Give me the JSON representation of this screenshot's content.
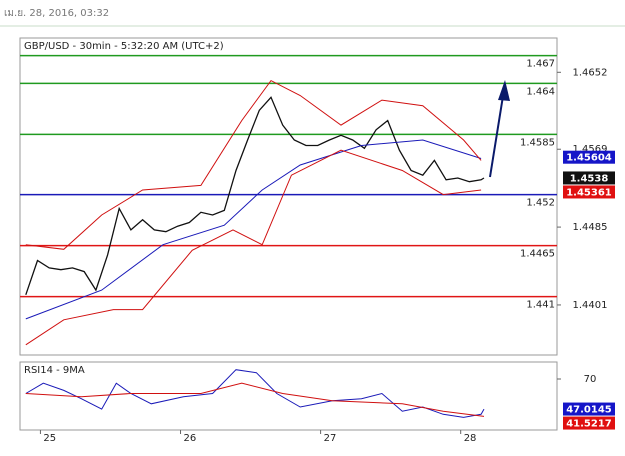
{
  "header": {
    "timestamp": "เม.ย. 28, 2016, 03:32"
  },
  "chart_data": [
    {
      "type": "line",
      "title": "GBP/USD - 30min - 5:32:20 AM (UTC+2)",
      "xlim": [
        -2,
        182
      ],
      "ylim": [
        1.4347,
        1.4689
      ],
      "yticks": [
        1.4401,
        1.4485,
        1.4569,
        1.4652
      ],
      "levels": [
        {
          "value": 1.467,
          "color": "#1f9a1f"
        },
        {
          "value": 1.464,
          "color": "#1f9a1f"
        },
        {
          "value": 1.4585,
          "color": "#1f9a1f"
        },
        {
          "value": 1.452,
          "color": "#1a1ab8"
        },
        {
          "value": 1.4465,
          "color": "#e01515"
        },
        {
          "value": 1.441,
          "color": "#e01515"
        }
      ],
      "series": [
        {
          "color": "#111111",
          "x": [
            0,
            4,
            8,
            12,
            16,
            20,
            24,
            28,
            32,
            36,
            40,
            44,
            48,
            52,
            56,
            60,
            64,
            68,
            72,
            76,
            80,
            84,
            88,
            92,
            96,
            100,
            104,
            108,
            112,
            116,
            120,
            124,
            128,
            132,
            136,
            140,
            144,
            148,
            152,
            156,
            157
          ],
          "values": [
            1.4412,
            1.4449,
            1.4441,
            1.4439,
            1.4441,
            1.4437,
            1.4417,
            1.4455,
            1.4505,
            1.4482,
            1.4493,
            1.4482,
            1.448,
            1.4486,
            1.449,
            1.4501,
            1.4498,
            1.4503,
            1.4546,
            1.4579,
            1.4611,
            1.4625,
            1.4595,
            1.4579,
            1.4573,
            1.4573,
            1.4579,
            1.4584,
            1.4579,
            1.457,
            1.459,
            1.46,
            1.4568,
            1.4546,
            1.4541,
            1.4557,
            1.4536,
            1.4538,
            1.4534,
            1.4536,
            1.4538
          ]
        },
        {
          "color": "#1a1ab8",
          "x": [
            0,
            26,
            47,
            68,
            81,
            94,
            115,
            136,
            156
          ],
          "values": [
            1.4386,
            1.4417,
            1.4466,
            1.4487,
            1.4525,
            1.4552,
            1.4573,
            1.4579,
            1.4559
          ]
        },
        {
          "color": "#d01010",
          "x": [
            0,
            13,
            26,
            40,
            60,
            74,
            84,
            94,
            108,
            122,
            136,
            150,
            156
          ],
          "values": [
            1.4466,
            1.4461,
            1.4498,
            1.4525,
            1.453,
            1.46,
            1.4643,
            1.4627,
            1.4595,
            1.4622,
            1.4616,
            1.4579,
            1.4557
          ]
        },
        {
          "color": "#d01010",
          "x": [
            0,
            13,
            30,
            40,
            57,
            71,
            81,
            91,
            108,
            129,
            143,
            156
          ],
          "values": [
            1.4358,
            1.4385,
            1.4396,
            1.4396,
            1.446,
            1.4482,
            1.4466,
            1.4541,
            1.4568,
            1.4546,
            1.452,
            1.4525
          ]
        }
      ],
      "price_labels": [
        {
          "value": 1.45604,
          "color": "#1515c8"
        },
        {
          "value": 1.4538,
          "color": "#111111"
        },
        {
          "value": 1.45361,
          "color": "#e01010"
        }
      ]
    },
    {
      "type": "line",
      "title": "RSI14 - 9MA",
      "xlim": [
        -2,
        182
      ],
      "ylim": [
        31,
        83
      ],
      "yticks": [
        70
      ],
      "xticks": [
        {
          "value": 5,
          "label": "25"
        },
        {
          "value": 53,
          "label": "26"
        },
        {
          "value": 101,
          "label": "27"
        },
        {
          "value": 149,
          "label": "28"
        }
      ],
      "series": [
        {
          "color": "#1a1ab8",
          "x": [
            0,
            6,
            13,
            19,
            26,
            31,
            36,
            43,
            54,
            64,
            72,
            79,
            86,
            94,
            105,
            115,
            122,
            129,
            136,
            143,
            150,
            156,
            157
          ],
          "values": [
            58.9,
            66.8,
            61.3,
            54.9,
            47.0,
            66.8,
            58.9,
            51.0,
            56.5,
            58.9,
            77.1,
            74.8,
            58.9,
            48.6,
            53.3,
            54.9,
            58.9,
            45.4,
            48.6,
            43.0,
            40.6,
            43.0,
            47.0
          ]
        },
        {
          "color": "#d01010",
          "x": [
            0,
            19,
            36,
            60,
            74,
            88,
            105,
            129,
            143,
            157
          ],
          "values": [
            58.9,
            56.5,
            58.9,
            58.9,
            66.8,
            58.9,
            53.3,
            51.0,
            45.4,
            41.4
          ]
        }
      ],
      "price_labels": [
        {
          "value": 47.0145,
          "color": "#1515c8"
        },
        {
          "value": 41.5217,
          "color": "#e01010"
        }
      ]
    }
  ]
}
